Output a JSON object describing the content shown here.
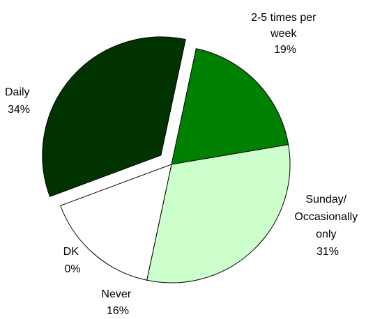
{
  "chart_data": {
    "type": "pie",
    "title": "",
    "slices": [
      {
        "label_lines": [
          "2-5 times per",
          "week"
        ],
        "percent_label": "19%",
        "value": 19,
        "color": "#008000"
      },
      {
        "label_lines": [
          "Sunday/",
          "Occasionally",
          "only"
        ],
        "percent_label": "31%",
        "value": 31,
        "color": "#ccffcc"
      },
      {
        "label_lines": [
          "Never"
        ],
        "percent_label": "16%",
        "value": 16,
        "color": "#ffffff"
      },
      {
        "label_lines": [
          "DK"
        ],
        "percent_label": "0%",
        "value": 0,
        "color": "#ffffff"
      },
      {
        "label_lines": [
          "Daily"
        ],
        "percent_label": "34%",
        "value": 34,
        "color": "#003300",
        "exploded": true
      }
    ]
  }
}
